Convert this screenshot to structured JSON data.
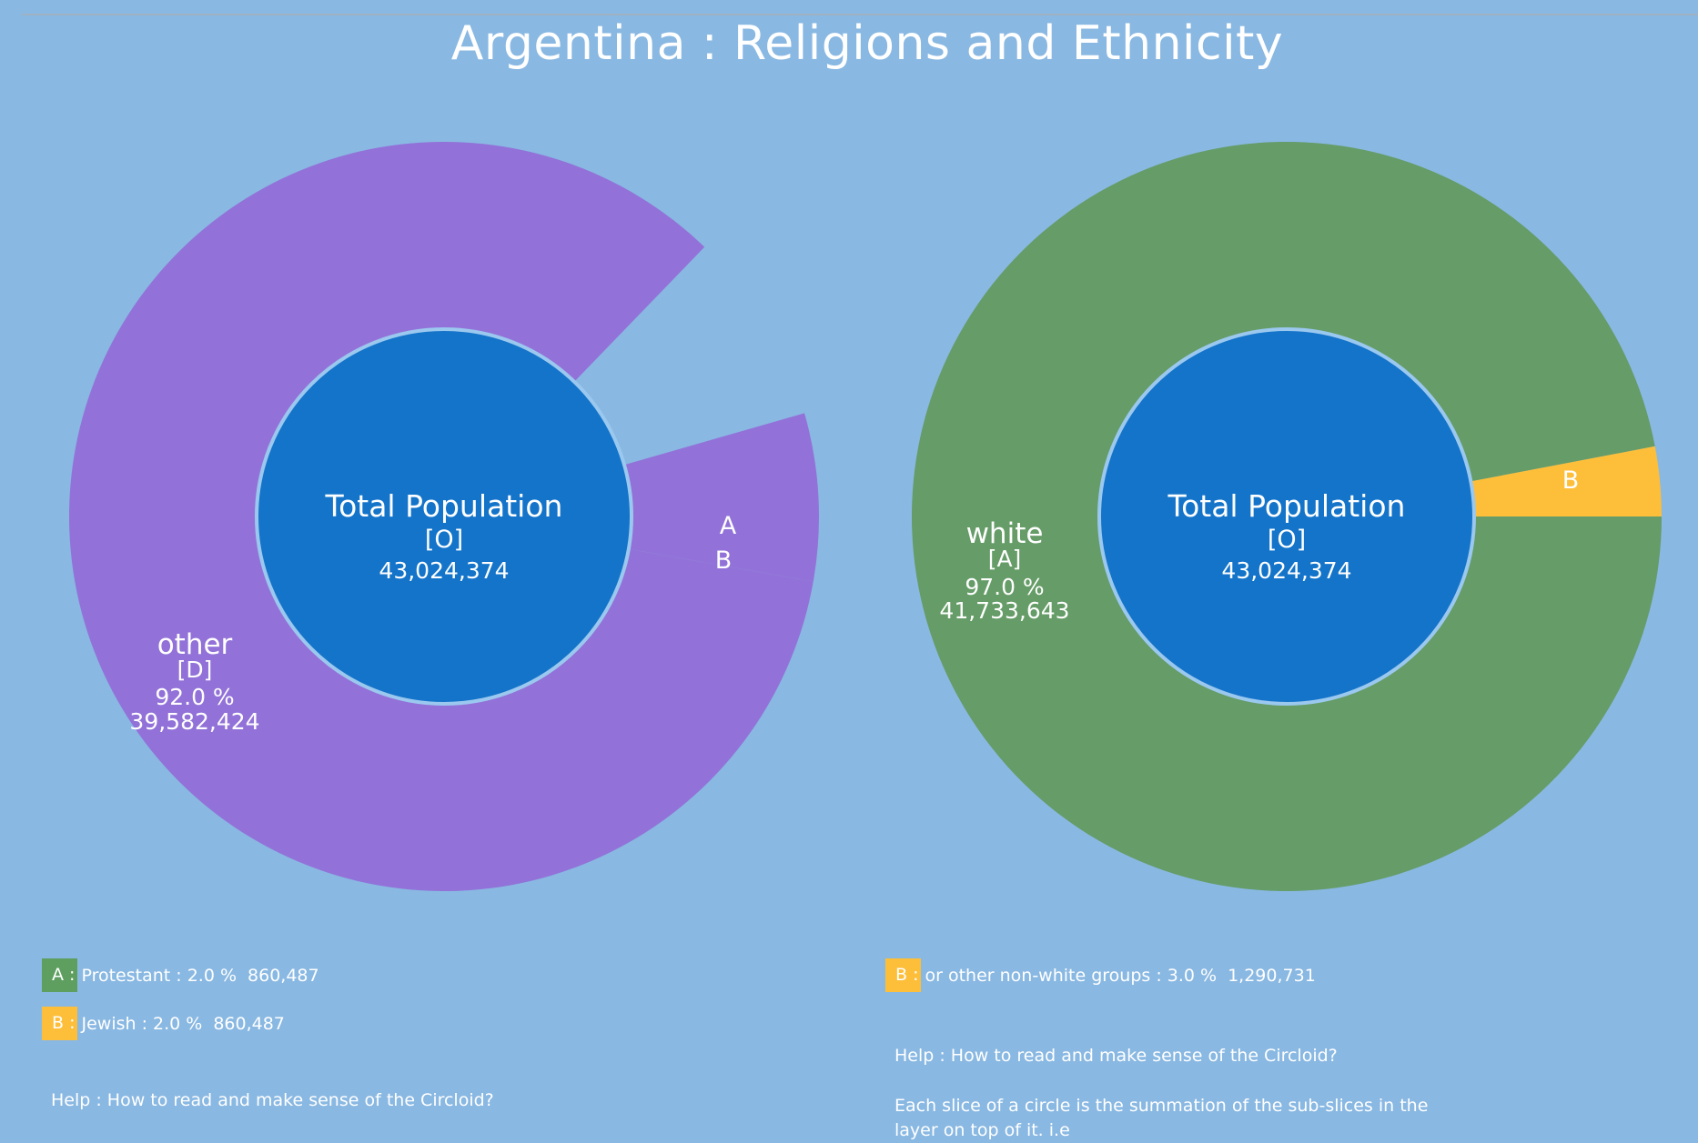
{
  "title": "Argentina : Religions and Ethnicity",
  "colors": {
    "background": "#89b8e2",
    "center": "#1474c9",
    "center_stroke": "#9bc8ef",
    "religion": "#9272d8",
    "ethnic_main": "#659c67",
    "ethnic_minor": "#fdbe3a",
    "legend_a": "#5e9f60",
    "legend_b": "#fdbe3a"
  },
  "chart_data": [
    {
      "type": "pie",
      "name": "religions",
      "center": {
        "title": "Total Population",
        "code": "[O]",
        "value": "43,024,374"
      },
      "slices": [
        {
          "key": "D",
          "label": "other",
          "code": "[D]",
          "percent": 92.0,
          "percent_label": "92.0 %",
          "value": 39582424,
          "value_label": "39,582,424"
        },
        {
          "key": "A",
          "label": "Protestant",
          "percent": 2.0,
          "value": 860487,
          "value_label": "860,487",
          "arc_label": "A"
        },
        {
          "key": "B",
          "label": "Jewish",
          "percent": 2.0,
          "value": 860487,
          "value_label": "860,487",
          "arc_label": "B"
        }
      ]
    },
    {
      "type": "pie",
      "name": "ethnicity",
      "center": {
        "title": "Total Population",
        "code": "[O]",
        "value": "43,024,374"
      },
      "slices": [
        {
          "key": "A",
          "label": "white",
          "code": "[A]",
          "percent": 97.0,
          "percent_label": "97.0 %",
          "value": 41733643,
          "value_label": "41,733,643"
        },
        {
          "key": "B",
          "label": "or other non-white groups",
          "percent": 3.0,
          "value": 1290731,
          "value_label": "1,290,731",
          "arc_label": "B"
        }
      ]
    }
  ],
  "legend_left": [
    {
      "key": "A",
      "key_label": "A :",
      "text": "Protestant : 2.0 %",
      "value": "860,487"
    },
    {
      "key": "B",
      "key_label": "B :",
      "text": "Jewish : 2.0 %",
      "value": "860,487"
    }
  ],
  "legend_right": [
    {
      "key": "B",
      "key_label": "B :",
      "text": "or other non-white groups : 3.0 %",
      "value": "1,290,731"
    }
  ],
  "help_left": "Help : How to read and make sense of the Circloid?",
  "help_right": "Help : How to read and make sense of the Circloid?",
  "help_right_body": "Each slice of a circle is the summation of the sub-slices in the layer on top of it. i.e"
}
